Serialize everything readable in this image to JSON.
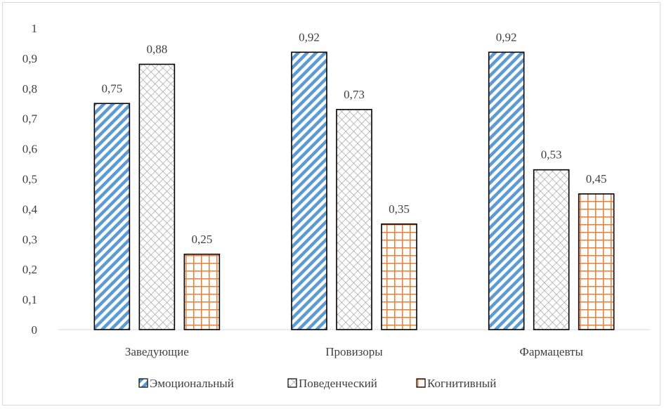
{
  "chart_data": {
    "type": "bar",
    "categories": [
      "Заведующие",
      "Провизоры",
      "Фармацевты"
    ],
    "series": [
      {
        "name": "Эмоциональный",
        "values": [
          0.75,
          0.92,
          0.92
        ],
        "pattern": "diagonal-stripes",
        "color": "#5b9bd5"
      },
      {
        "name": "Поведенческий",
        "values": [
          0.88,
          0.73,
          0.53
        ],
        "pattern": "diamond-grid",
        "color": "#a5a5a5"
      },
      {
        "name": "Когнитивный",
        "values": [
          0.25,
          0.35,
          0.45
        ],
        "pattern": "square-grid",
        "color": "#ed7d31"
      }
    ],
    "yticks": [
      "0",
      "0,1",
      "0,2",
      "0,3",
      "0,4",
      "0,5",
      "0,6",
      "0,7",
      "0,8",
      "0,9",
      "1"
    ],
    "data_labels": [
      [
        "0,75",
        "0,92",
        "0,92"
      ],
      [
        "0,88",
        "0,73",
        "0,53"
      ],
      [
        "0,25",
        "0,35",
        "0,45"
      ]
    ],
    "ylim": [
      0,
      1
    ],
    "grid": false,
    "legend_position": "bottom",
    "title": "",
    "xlabel": "",
    "ylabel": ""
  }
}
